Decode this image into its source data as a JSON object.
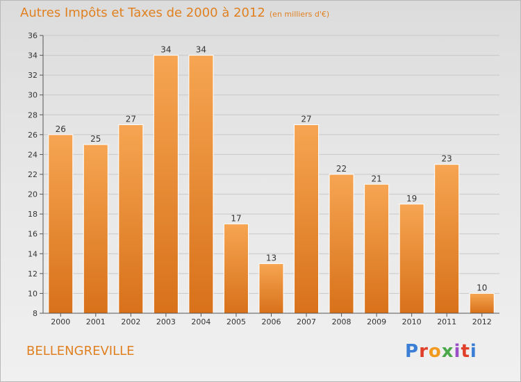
{
  "header": {
    "title": "Autres Impôts et Taxes de 2000 à 2012",
    "unit": "(en milliers d'€)"
  },
  "footer": {
    "town": "BELLENGREVILLE",
    "logo_text": "Proxiti",
    "logo_colors": [
      "#3a7fd5",
      "#e0402a",
      "#f29a1e",
      "#4aa84a",
      "#9b4fc7",
      "#e0402a",
      "#3a7fd5"
    ]
  },
  "colors": {
    "bar_top": "#f6a552",
    "bar_bottom": "#d8711a",
    "axis": "#555555",
    "grid": "#c8c8c8",
    "title": "#e08020"
  },
  "chart_data": {
    "type": "bar",
    "categories": [
      "2000",
      "2001",
      "2002",
      "2003",
      "2004",
      "2005",
      "2006",
      "2007",
      "2008",
      "2009",
      "2010",
      "2011",
      "2012"
    ],
    "values": [
      26,
      25,
      27,
      34,
      34,
      17,
      13,
      27,
      22,
      21,
      19,
      23,
      10
    ],
    "title": "Autres Impôts et Taxes de 2000 à 2012",
    "subtitle": "(en milliers d'€)",
    "xlabel": "",
    "ylabel": "",
    "ylim": [
      8,
      36
    ],
    "yticks": [
      8,
      10,
      12,
      14,
      16,
      18,
      20,
      22,
      24,
      26,
      28,
      30,
      32,
      34,
      36
    ],
    "grid": true,
    "data_labels": true
  }
}
